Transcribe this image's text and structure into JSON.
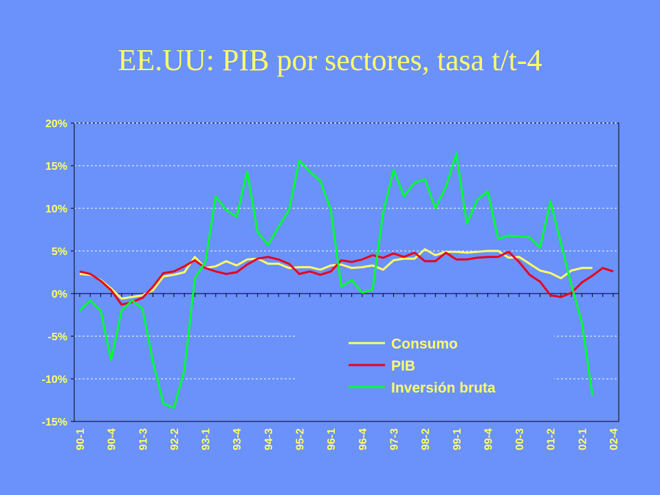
{
  "slide": {
    "title": "EE.UU: PIB por sectores, tasa t/t-4"
  },
  "colors": {
    "background": "#6b91fb",
    "text": "#ffff66",
    "consumo": "#ffff66",
    "pib": "#e8001c",
    "inversion": "#00ff33",
    "grid": "#ffffff"
  },
  "chart_data": {
    "type": "line",
    "title": "EE.UU: PIB por sectores, tasa t/t-4",
    "xlabel": "",
    "ylabel": "",
    "ylim": [
      -15,
      20
    ],
    "yticks": [
      -15,
      -10,
      -5,
      0,
      5,
      10,
      15,
      20
    ],
    "ytick_labels": [
      "-15%",
      "-10%",
      "-5%",
      "0%",
      "5%",
      "10%",
      "15%",
      "20%"
    ],
    "grid": true,
    "legend_position": "lower-right",
    "x": [
      "90-1",
      "90-2",
      "90-3",
      "90-4",
      "91-1",
      "91-2",
      "91-3",
      "91-4",
      "92-1",
      "92-2",
      "92-3",
      "92-4",
      "93-1",
      "93-2",
      "93-3",
      "93-4",
      "94-1",
      "94-2",
      "94-3",
      "94-4",
      "95-1",
      "95-2",
      "95-3",
      "95-4",
      "96-1",
      "96-2",
      "96-3",
      "96-4",
      "97-1",
      "97-2",
      "97-3",
      "97-4",
      "98-1",
      "98-2",
      "98-3",
      "98-4",
      "99-1",
      "99-2",
      "99-3",
      "99-4",
      "00-1",
      "00-2",
      "00-3",
      "00-4",
      "01-1",
      "01-2",
      "01-3",
      "01-4",
      "02-1",
      "02-2",
      "02-3",
      "02-4"
    ],
    "xtick_labels": [
      "90-1",
      "90-4",
      "91-3",
      "92-2",
      "93-1",
      "93-4",
      "94-3",
      "95-2",
      "96-1",
      "96-4",
      "97-3",
      "98-2",
      "99-1",
      "99-4",
      "00-3",
      "01-2",
      "02-1",
      "02-4"
    ],
    "series": [
      {
        "name": "Consumo",
        "color": "#ffff66",
        "values": [
          2.3,
          2.2,
          1.6,
          0.6,
          -0.6,
          -0.4,
          -0.2,
          0.4,
          2.0,
          2.2,
          2.5,
          4.3,
          3.0,
          3.2,
          3.8,
          3.3,
          4.0,
          4.1,
          3.5,
          3.5,
          3.0,
          3.1,
          3.1,
          2.8,
          3.3,
          3.4,
          3.0,
          3.1,
          3.3,
          2.8,
          3.9,
          4.1,
          4.1,
          5.2,
          4.5,
          4.9,
          4.9,
          4.8,
          4.9,
          5.0,
          5.0,
          4.2,
          4.3,
          3.5,
          2.7,
          2.4,
          1.8,
          2.7,
          3.0,
          3.0,
          null,
          null
        ]
      },
      {
        "name": "PIB",
        "color": "#e8001c",
        "values": [
          2.6,
          2.3,
          1.5,
          0.4,
          -1.3,
          -1.0,
          -0.5,
          0.8,
          2.4,
          2.6,
          3.2,
          3.9,
          3.0,
          2.6,
          2.3,
          2.5,
          3.4,
          4.1,
          4.3,
          4.0,
          3.5,
          2.3,
          2.6,
          2.2,
          2.6,
          3.9,
          3.7,
          4.0,
          4.5,
          4.2,
          4.7,
          4.3,
          4.8,
          3.8,
          3.8,
          4.8,
          4.0,
          4.0,
          4.2,
          4.3,
          4.3,
          4.9,
          3.7,
          2.2,
          1.4,
          -0.2,
          -0.4,
          0.1,
          1.3,
          2.1,
          3.0,
          2.6
        ]
      },
      {
        "name": "Inversión bruta",
        "color": "#00ff33",
        "values": [
          -2.0,
          -0.8,
          -2.0,
          -7.8,
          -2.0,
          -0.8,
          -1.8,
          -8.0,
          -12.9,
          -13.4,
          -9.0,
          1.8,
          3.7,
          11.4,
          9.8,
          9.0,
          14.3,
          7.2,
          5.7,
          7.8,
          9.8,
          15.6,
          14.3,
          13.2,
          9.8,
          0.8,
          1.6,
          0.1,
          0.5,
          9.5,
          14.5,
          11.4,
          13.0,
          13.4,
          10.0,
          12.5,
          16.4,
          8.2,
          11.0,
          12.0,
          6.4,
          6.8,
          6.7,
          6.6,
          5.4,
          10.8,
          5.9,
          1.0,
          -3.4,
          -11.9,
          null,
          null
        ]
      }
    ]
  }
}
